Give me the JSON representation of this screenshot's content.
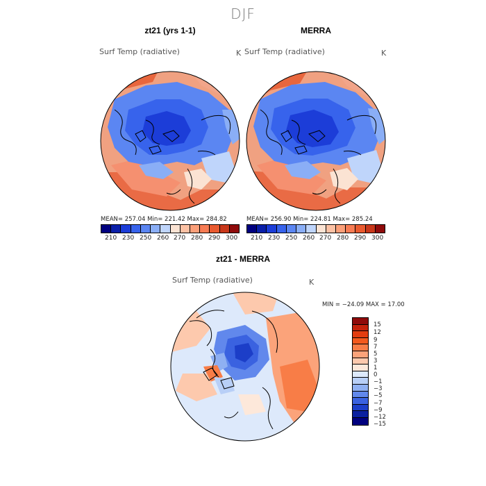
{
  "season": "DJF",
  "panels": {
    "model": {
      "title": "zt21 (yrs 1-1)",
      "field": "Surf Temp (radiative)",
      "unit": "K",
      "stats": "MEAN= 257.04   Min= 221.42   Max= 284.82"
    },
    "obs": {
      "title": "MERRA",
      "field": "Surf Temp (radiative)",
      "unit": "K",
      "stats": "MEAN= 256.90   Min= 224.81   Max= 285.24"
    },
    "diff": {
      "title": "zt21 - MERRA",
      "field": "Surf Temp (radiative)",
      "unit": "K",
      "stats": "MIN = −24.09 MAX =   17.00"
    }
  },
  "abs_colorbar": {
    "ticks": [
      "210",
      "230",
      "250",
      "260",
      "270",
      "280",
      "290",
      "300"
    ],
    "colors": [
      "#00007f",
      "#0a1fa8",
      "#1c3dd8",
      "#3763ec",
      "#5b86f2",
      "#8aaef6",
      "#bfd5fb",
      "#fbe3d3",
      "#fcc1a4",
      "#fb9f79",
      "#f77c54",
      "#e95a2f",
      "#c8371a",
      "#8f0b0b"
    ]
  },
  "diff_colorbar": {
    "ticks": [
      "15",
      "12",
      "9",
      "7",
      "5",
      "3",
      "1",
      "0",
      "−1",
      "−3",
      "−5",
      "−7",
      "−9",
      "−12",
      "−15"
    ],
    "colors": [
      "#8f0b0b",
      "#c4220c",
      "#e33d10",
      "#f35a1e",
      "#f87d47",
      "#fba37a",
      "#fdc9ad",
      "#fde8da",
      "#dde9fb",
      "#b8cff7",
      "#8fb0f2",
      "#6188ec",
      "#3a62e0",
      "#1c3ec8",
      "#0a20a0",
      "#00007f"
    ]
  }
}
